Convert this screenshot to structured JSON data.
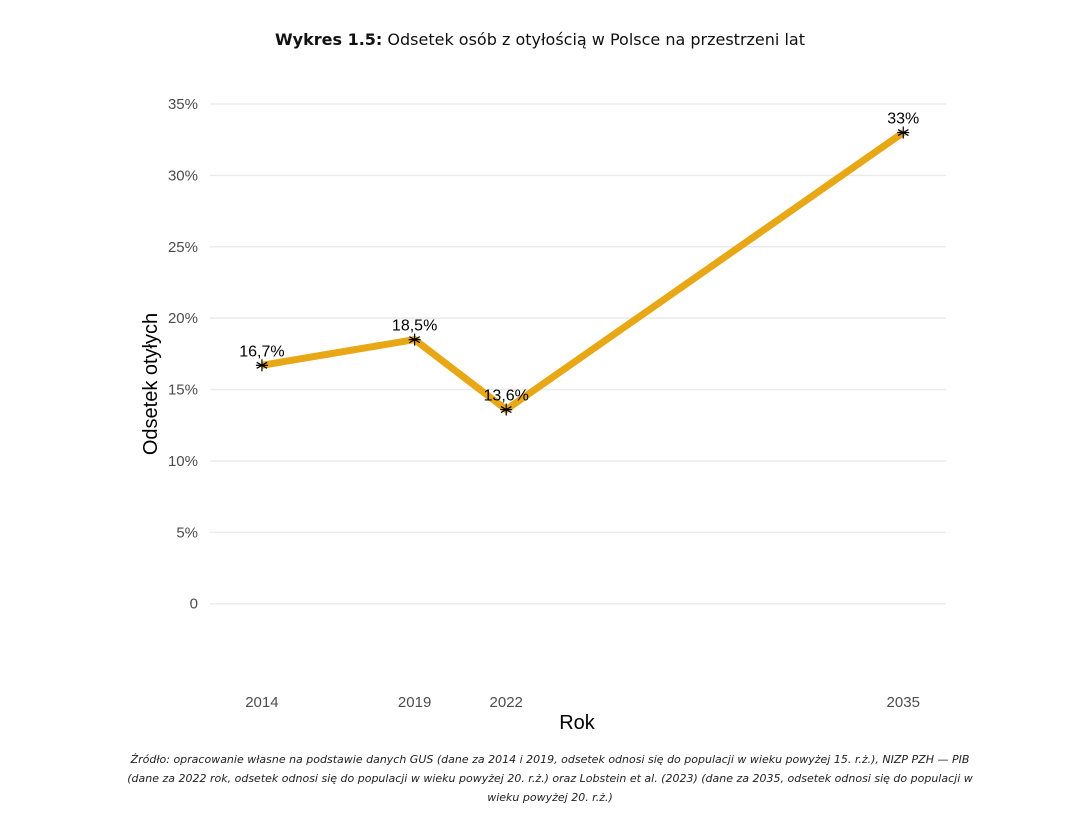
{
  "title": {
    "prefix": "Wykres 1.5:",
    "text": "Odsetek osób z otyłością w Polsce na przestrzeni lat"
  },
  "chart_data": {
    "type": "line",
    "x": [
      2014,
      2019,
      2022,
      2035
    ],
    "series": [
      {
        "values": [
          16.7,
          18.5,
          13.6,
          33.0
        ],
        "data_labels": [
          "16,7%",
          "18,5%",
          "13,6%",
          "33%"
        ],
        "color": "#e8a715",
        "marker": "asterisk"
      }
    ],
    "xlabel": "Rok",
    "ylabel": "Odsetek otyłych",
    "xlim": [
      2012.3,
      2036.4
    ],
    "ylim": [
      -4.5,
      35
    ],
    "x_ticks": [
      2014,
      2019,
      2022,
      2035
    ],
    "x_tick_labels": [
      "2014",
      "2019",
      "2022",
      "2035"
    ],
    "y_ticks": [
      0,
      5,
      10,
      15,
      20,
      25,
      30,
      35
    ],
    "y_tick_labels": [
      "0",
      "5%",
      "10%",
      "15%",
      "20%",
      "25%",
      "30%",
      "35%"
    ],
    "grid": true,
    "grid_color": "#ebebeb",
    "tick_label_color": "#4d4d4d"
  },
  "source": "Źródło: opracowanie własne na podstawie danych GUS (dane za 2014 i 2019, odsetek odnosi się do populacji w wieku powyżej 15. r.ż.), NIZP PZH — PIB (dane za 2022 rok, odsetek odnosi się do populacji w wieku powyżej 20. r.ż.) oraz Lobstein et al. (2023) (dane za 2035, odsetek odnosi się do populacji w wieku powyżej 20. r.ż.)"
}
